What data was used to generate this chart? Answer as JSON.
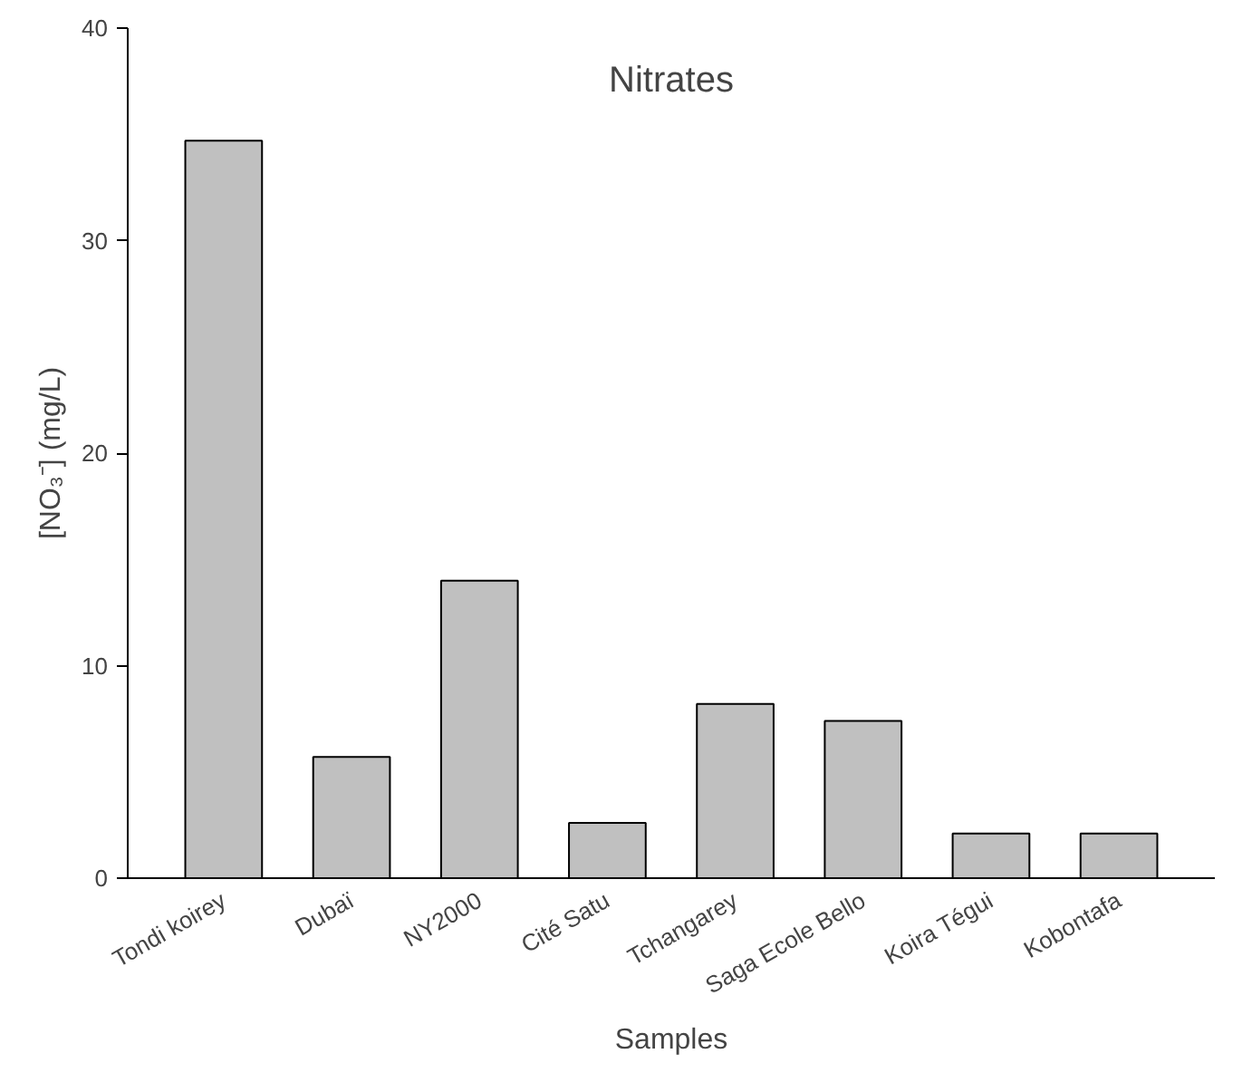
{
  "chart_data": {
    "type": "bar",
    "title": "Nitrates",
    "xlabel": "Samples",
    "ylabel": "[NO₃⁻] (mg/L)",
    "categories": [
      "Tondi koirey",
      "Dubaï",
      "NY2000",
      "Cité Satu",
      "Tchangarey",
      "Saga Ecole Bello",
      "Koira Tégui",
      "Kobontafa"
    ],
    "values": [
      34.7,
      5.7,
      14.0,
      2.6,
      8.2,
      7.4,
      2.1,
      2.1
    ],
    "color": "#c0c0c0",
    "ylim": [
      0,
      40
    ],
    "yticks": [
      0,
      10,
      20,
      30,
      40
    ],
    "grid": false
  }
}
